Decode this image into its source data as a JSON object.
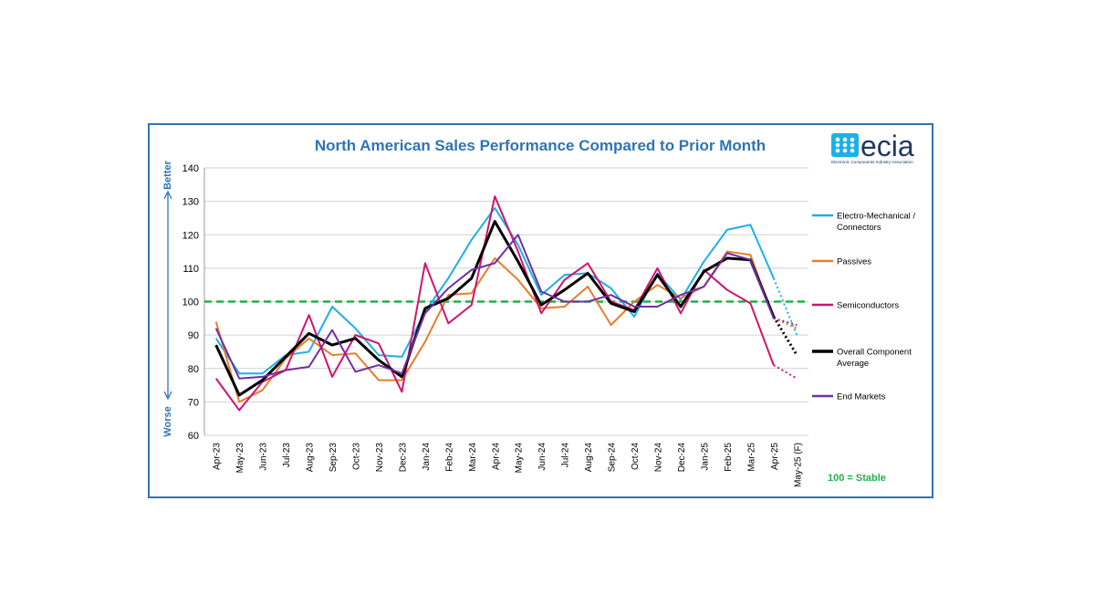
{
  "chart_data": {
    "type": "line",
    "title": "North American Sales Performance Compared to Prior Month",
    "categories": [
      "Apr-23",
      "May-23",
      "Jun-23",
      "Jul-23",
      "Aug-23",
      "Sep-23",
      "Oct-23",
      "Nov-23",
      "Dec-23",
      "Jan-24",
      "Feb-24",
      "Mar-24",
      "Apr-24",
      "May-24",
      "Jun-24",
      "Jul-24",
      "Aug-24",
      "Sep-24",
      "Oct-24",
      "Nov-24",
      "Dec-24",
      "Jan-25",
      "Feb-25",
      "Mar-25",
      "Apr-25",
      "May-25 (F)"
    ],
    "ylim": [
      60,
      140
    ],
    "yticks": [
      60,
      70,
      80,
      90,
      100,
      110,
      120,
      130,
      140
    ],
    "reference_line": {
      "value": 100,
      "color": "#22b14c",
      "style": "dashed"
    },
    "grid": "horizontal",
    "legend_position": "right",
    "forecast_category": "May-25 (F)",
    "series": [
      {
        "name": "Electro-Mechanical / Connectors",
        "color": "#1cb0e8",
        "width": 2,
        "values": [
          89,
          78.5,
          78.5,
          84,
          85,
          98.5,
          92,
          84,
          83.5,
          97,
          107,
          118.5,
          128,
          117,
          102,
          108,
          108.5,
          104,
          95.5,
          108.5,
          100.5,
          112,
          121.5,
          123,
          107,
          90
        ]
      },
      {
        "name": "Passives",
        "color": "#e87d2b",
        "width": 2,
        "values": [
          94,
          70,
          73.5,
          83,
          89,
          84,
          84.5,
          76.5,
          76.5,
          88,
          102,
          102.5,
          113,
          106.5,
          98,
          98.5,
          104.5,
          93,
          100,
          105,
          101,
          104.5,
          115,
          114,
          95,
          92
        ]
      },
      {
        "name": "Semiconductors",
        "color": "#d0146f",
        "width": 2,
        "values": [
          77,
          67.5,
          76,
          79.5,
          96,
          77.5,
          90,
          87.5,
          73,
          111.5,
          93.5,
          99,
          131.5,
          115,
          96.5,
          106.5,
          111.5,
          100,
          97.5,
          110,
          96.5,
          109.5,
          103.5,
          99.5,
          81,
          77
        ]
      },
      {
        "name": "Overall Component Average",
        "color": "#000000",
        "width": 3,
        "values": [
          87,
          72,
          76.5,
          83.5,
          90.5,
          87,
          89,
          82.5,
          77.5,
          98,
          101,
          107,
          124,
          112,
          99,
          103.5,
          108.5,
          99.5,
          97,
          108,
          98.5,
          109,
          113,
          112.5,
          95.5,
          84
        ]
      },
      {
        "name": "End Markets",
        "color": "#7030a0",
        "width": 2,
        "values": [
          92,
          77,
          77.5,
          79.5,
          80.5,
          91.5,
          79,
          81,
          78.5,
          96.5,
          104,
          109.5,
          111.5,
          120,
          103,
          100,
          100,
          102,
          98.5,
          98.5,
          102,
          104.5,
          114.5,
          112.5,
          95,
          93
        ]
      }
    ],
    "y_annotation_top": "Better",
    "y_annotation_bottom": "Worse",
    "footnote": "100 = Stable"
  },
  "logo": {
    "text": "ecia",
    "subtext": "Electronic Components Industry Association"
  }
}
